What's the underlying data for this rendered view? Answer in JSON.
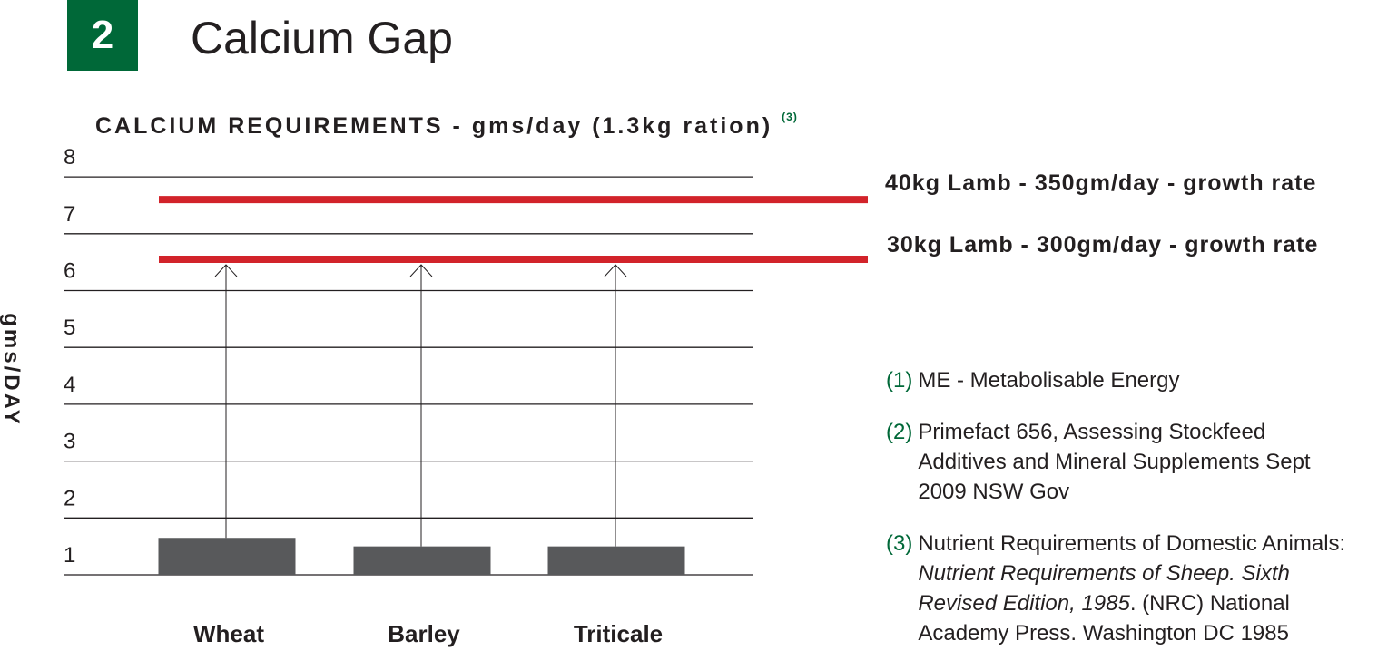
{
  "header": {
    "number": "2",
    "title": "Calcium Gap"
  },
  "chart_data": {
    "type": "bar",
    "title": "CALCIUM REQUIREMENTS - gms/day (1.3kg ration)",
    "title_ref": "(3)",
    "ylabel": "gms/DAY",
    "xlabel": "",
    "ylim": [
      1,
      8
    ],
    "yticks": [
      "1",
      "2",
      "3",
      "4",
      "5",
      "6",
      "7",
      "8"
    ],
    "grid": true,
    "categories": [
      "Wheat",
      "Barley",
      "Triticale"
    ],
    "values": [
      1.65,
      1.5,
      1.5
    ],
    "bar_color": "#58595b",
    "reference_lines": [
      {
        "label": "40kg Lamb - 350gm/day - growth rate",
        "value": 7.6,
        "color": "#d2232a"
      },
      {
        "label": "30kg Lamb - 300gm/day - growth rate",
        "value": 6.55,
        "color": "#d2232a"
      }
    ],
    "gap_arrows": {
      "from": "bar_top",
      "to": 6.55
    }
  },
  "notes": [
    {
      "num": "(1)",
      "text": "ME - Metabolisable Energy"
    },
    {
      "num": "(2)",
      "text": "Primefact 656, Assessing Stockfeed\nAdditives and Mineral Supplements Sept\n2009 NSW Gov"
    },
    {
      "num": "(3)",
      "text_start": "Nutrient Requirements of Domestic Animals:\n",
      "text_italic": "Nutrient Requirements of Sheep. Sixth\nRevised Edition, 1985",
      "text_end": ". (NRC) National\nAcademy Press. Washington DC 1985"
    }
  ],
  "colors": {
    "accent": "#006838",
    "reference": "#d2232a",
    "bar": "#58595b",
    "text": "#231f20"
  }
}
